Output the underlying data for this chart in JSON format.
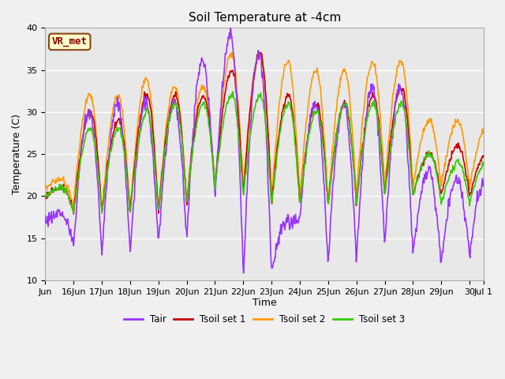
{
  "title": "Soil Temperature at -4cm",
  "xlabel": "Time",
  "ylabel": "Temperature (C)",
  "ylim": [
    10,
    40
  ],
  "bg_color": "#e8e8e8",
  "fig_bg_color": "#f0f0f0",
  "annotation_text": "VR_met",
  "annotation_box_color": "#ffffcc",
  "annotation_border_color": "#8B4513",
  "annotation_text_color": "#8B0000",
  "xtick_labels": [
    "Jun",
    "16Jun",
    "17Jun",
    "18Jun",
    "19Jun",
    "20Jun",
    "21Jun",
    "22Jun",
    "23Jun",
    "24Jun",
    "25Jun",
    "26Jun",
    "27Jun",
    "28Jun",
    "29Jun",
    "30",
    "Jul 1"
  ],
  "legend_entries": [
    "Tair",
    "Tsoil set 1",
    "Tsoil set 2",
    "Tsoil set 3"
  ],
  "colors": {
    "Tair": "#9933ff",
    "Tsoil1": "#cc0000",
    "Tsoil2": "#ff9900",
    "Tsoil3": "#33cc00"
  },
  "linewidth": 1.2,
  "grid_color": "#ffffff",
  "title_fontsize": 11,
  "axis_fontsize": 9,
  "tick_fontsize": 8
}
